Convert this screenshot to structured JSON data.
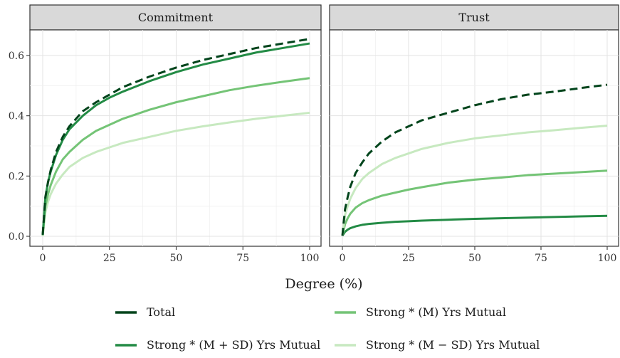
{
  "chart_data": {
    "type": "line",
    "xlabel": "Degree (%)",
    "ylabel": "",
    "xlim": [
      0,
      100
    ],
    "ylim": [
      0,
      0.7
    ],
    "x_ticks": [
      0,
      25,
      50,
      75,
      100
    ],
    "x_tick_labels": [
      "0",
      "25",
      "50",
      "75",
      "100"
    ],
    "y_ticks": [
      0.0,
      0.2,
      0.4,
      0.6
    ],
    "y_tick_labels": [
      "0.0",
      "0.2",
      "0.4",
      "0.6"
    ],
    "grid": true,
    "legend_position": "bottom",
    "legend": [
      {
        "name": "Total",
        "color": "#00441b",
        "dash": true
      },
      {
        "name": "Strong * (M) Yrs Mutual",
        "color": "#74c476",
        "dash": false
      },
      {
        "name": "Strong * (M + SD) Yrs Mutual",
        "color": "#238b45",
        "dash": false
      },
      {
        "name": "Strong * (M − SD) Yrs Mutual",
        "color": "#c7e9c0",
        "dash": false
      }
    ],
    "x": [
      0,
      1,
      2,
      3,
      5,
      7.5,
      10,
      15,
      20,
      25,
      30,
      40,
      50,
      60,
      70,
      80,
      90,
      100
    ],
    "panels": [
      {
        "title": "Commitment",
        "series": [
          {
            "name": "Total",
            "color": "#00441b",
            "dash": true,
            "values": [
              0.005,
              0.13,
              0.18,
              0.22,
              0.28,
              0.33,
              0.365,
              0.415,
              0.445,
              0.47,
              0.495,
              0.53,
              0.56,
              0.585,
              0.605,
              0.625,
              0.64,
              0.655
            ]
          },
          {
            "name": "Strong * (M + SD) Yrs Mutual",
            "color": "#238b45",
            "dash": false,
            "values": [
              0.005,
              0.13,
              0.18,
              0.215,
              0.27,
              0.32,
              0.355,
              0.4,
              0.435,
              0.46,
              0.48,
              0.515,
              0.545,
              0.57,
              0.59,
              0.61,
              0.625,
              0.64
            ]
          },
          {
            "name": "Strong * (M) Yrs Mutual",
            "color": "#74c476",
            "dash": false,
            "values": [
              0.003,
              0.1,
              0.14,
              0.17,
              0.215,
              0.255,
              0.28,
              0.32,
              0.35,
              0.37,
              0.39,
              0.42,
              0.445,
              0.465,
              0.485,
              0.5,
              0.513,
              0.525
            ]
          },
          {
            "name": "Strong * (M − SD) Yrs Mutual",
            "color": "#c7e9c0",
            "dash": false,
            "values": [
              0.002,
              0.08,
              0.115,
              0.14,
              0.175,
              0.205,
              0.23,
              0.26,
              0.28,
              0.295,
              0.31,
              0.33,
              0.35,
              0.365,
              0.378,
              0.39,
              0.4,
              0.41
            ]
          }
        ]
      },
      {
        "title": "Trust",
        "series": [
          {
            "name": "Total",
            "color": "#00441b",
            "dash": true,
            "values": [
              0.002,
              0.09,
              0.13,
              0.165,
              0.21,
              0.245,
              0.275,
              0.315,
              0.345,
              0.365,
              0.385,
              0.41,
              0.435,
              0.455,
              0.47,
              0.48,
              0.492,
              0.503
            ]
          },
          {
            "name": "Strong * (M − SD) Yrs Mutual",
            "color": "#c7e9c0",
            "dash": false,
            "values": [
              0.002,
              0.07,
              0.1,
              0.125,
              0.16,
              0.19,
              0.21,
              0.24,
              0.26,
              0.275,
              0.29,
              0.31,
              0.325,
              0.335,
              0.345,
              0.352,
              0.36,
              0.367
            ]
          },
          {
            "name": "Strong * (M) Yrs Mutual",
            "color": "#74c476",
            "dash": false,
            "values": [
              0.002,
              0.04,
              0.06,
              0.075,
              0.095,
              0.11,
              0.12,
              0.135,
              0.145,
              0.155,
              0.163,
              0.178,
              0.188,
              0.195,
              0.203,
              0.208,
              0.213,
              0.218
            ]
          },
          {
            "name": "Strong * (M + SD) Yrs Mutual",
            "color": "#238b45",
            "dash": false,
            "values": [
              0.002,
              0.015,
              0.022,
              0.027,
              0.033,
              0.038,
              0.041,
              0.045,
              0.048,
              0.05,
              0.052,
              0.055,
              0.058,
              0.06,
              0.062,
              0.064,
              0.066,
              0.068
            ]
          }
        ]
      }
    ]
  }
}
